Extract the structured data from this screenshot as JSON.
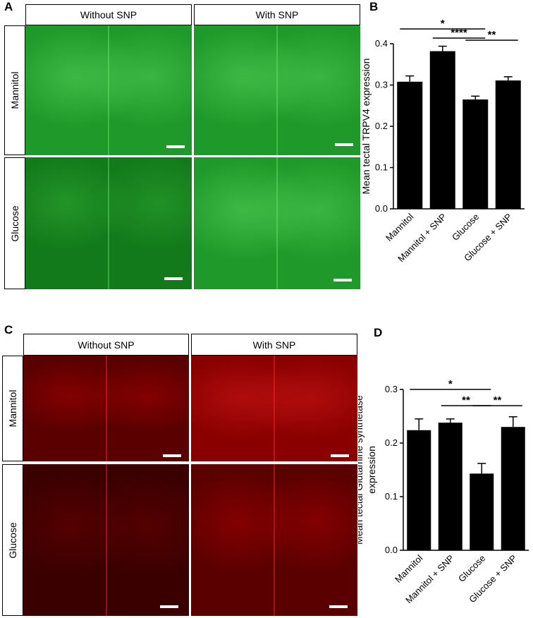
{
  "panels": {
    "A": {
      "letter": "A",
      "col_headers": [
        "Without SNP",
        "With SNP"
      ],
      "row_labels": [
        "Mannitol",
        "Glucose"
      ],
      "stain_color": "#1f9a2a"
    },
    "B": {
      "letter": "B"
    },
    "C": {
      "letter": "C",
      "col_headers": [
        "Without SNP",
        "With SNP"
      ],
      "row_labels": [
        "Mannitol",
        "Glucose"
      ],
      "stain_color": "#8a0000"
    },
    "D": {
      "letter": "D"
    }
  },
  "chart_data": [
    {
      "panel": "B",
      "type": "bar",
      "categories": [
        "Mannitol",
        "Mannitol + SNP",
        "Glucose",
        "Glucose + SNP"
      ],
      "values": [
        0.308,
        0.382,
        0.265,
        0.311
      ],
      "errors": [
        0.014,
        0.012,
        0.008,
        0.009
      ],
      "ylabel": "Mean tectal TRPV4 expression",
      "ylim": [
        0.0,
        0.4
      ],
      "yticks": [
        "0.0",
        "0.1",
        "0.2",
        "0.3",
        "0.4"
      ],
      "bar_color": "#000000",
      "significance": [
        {
          "from": 0,
          "to": 2,
          "label": "*"
        },
        {
          "from": 1,
          "to": 2,
          "label": "****"
        },
        {
          "from": 2,
          "to": 3,
          "label": "**"
        }
      ]
    },
    {
      "panel": "D",
      "type": "bar",
      "categories": [
        "Mannitol",
        "Mannitol + SNP",
        "Glucose",
        "Glucose + SNP"
      ],
      "values": [
        0.224,
        0.238,
        0.143,
        0.23
      ],
      "errors": [
        0.021,
        0.007,
        0.019,
        0.019
      ],
      "ylabel": "Mean tectal Glutamine synthetase expression",
      "ylim": [
        0.0,
        0.3
      ],
      "yticks": [
        "0.0",
        "0.1",
        "0.2",
        "0.3"
      ],
      "bar_color": "#000000",
      "significance": [
        {
          "from": 0,
          "to": 2,
          "label": "*"
        },
        {
          "from": 1,
          "to": 2,
          "label": "**"
        },
        {
          "from": 2,
          "to": 3,
          "label": "**"
        }
      ]
    }
  ]
}
